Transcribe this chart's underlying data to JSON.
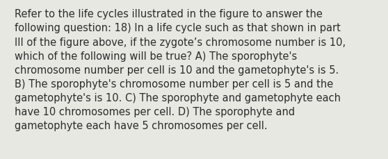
{
  "lines": [
    "Refer to the life cycles illustrated in the figure to answer the",
    "following question: 18) In a life cycle such as that shown in part",
    "III of the figure above, if the zygote’s chromosome number is 10,",
    "which of the following will be true? A) The sporophyte's",
    "chromosome number per cell is 10 and the gametophyte's is 5.",
    "B) The sporophyte's chromosome number per cell is 5 and the",
    "gametophyte's is 10. C) The sporophyte and gametophyte each",
    "have 10 chromosomes per cell. D) The sporophyte and",
    "gametophyte each have 5 chromosomes per cell."
  ],
  "background_color": "#e8e8e2",
  "text_color": "#2b2b2b",
  "font_size": 10.5,
  "font_family": "DejaVu Sans",
  "fig_width": 5.58,
  "fig_height": 2.3,
  "dpi": 100
}
